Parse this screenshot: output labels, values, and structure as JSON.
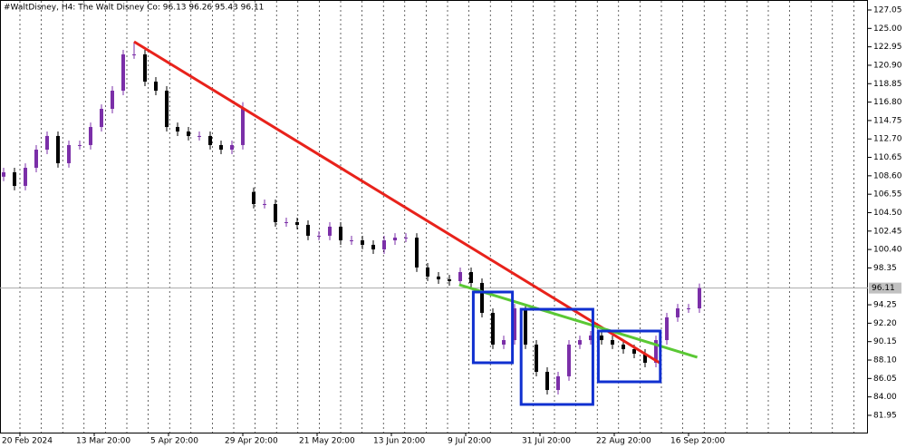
{
  "chart_data": {
    "type": "candlestick",
    "title": "#WaltDisney, H4:  The Walt Disney Co:  96.13 96.26 95.43 96.11",
    "ylim": [
      80.03,
      128.16
    ],
    "yticks": [
      127.05,
      {
        "value": 125,
        "label": "125.00"
      },
      122.95,
      {
        "value": 120.9,
        "label": "120.90"
      },
      118.85,
      {
        "value": 116.8,
        "label": "116.80"
      },
      114.75,
      {
        "value": 112.7,
        "label": "112.70"
      },
      110.65,
      {
        "value": 108.6,
        "label": "108.60"
      },
      106.55,
      {
        "value": 104.5,
        "label": "104.50"
      },
      102.45,
      {
        "value": 100.4,
        "label": "100.40"
      },
      98.35,
      94.25,
      {
        "value": 92.2,
        "label": "92.20"
      },
      90.15,
      {
        "value": 88.1,
        "label": "88.10"
      },
      86.05,
      {
        "value": 84,
        "label": "84.00"
      },
      81.95
    ],
    "x_labels": [
      "20 Feb 2024",
      "13 Mar 20:00",
      "5 Apr 20:00",
      "29 Apr 20:00",
      "21 May 20:00",
      "13 Jun 20:00",
      "9 Jul 20:00",
      "31 Jul 20:00",
      "22 Aug 20:00",
      "16 Sep 20:00"
    ],
    "grid": true,
    "up_color": "#7b2fa8",
    "down_color": "#000000",
    "open": [
      108.5,
      108.99,
      107.48,
      109.49,
      111.51,
      113.03,
      110.0,
      112.02,
      112.02,
      114.03,
      116.05,
      118.07,
      122.11,
      122.11,
      119.08,
      118.07,
      114.03,
      113.53,
      113.03,
      113.03,
      112.02,
      111.51,
      112.02,
      106.8,
      105.46,
      105.46,
      103.44,
      103.44,
      103.14,
      101.93,
      101.93,
      102.94,
      101.42,
      101.42,
      100.92,
      100.41,
      101.42,
      101.72,
      101.72,
      98.4,
      97.39,
      97.08,
      96.88,
      97.89,
      96.68,
      93.35,
      89.82,
      90.32,
      93.85,
      89.82,
      86.79,
      84.77,
      86.29,
      89.82,
      90.32,
      90.83,
      90.32,
      89.82,
      89.31,
      88.81,
      87.8,
      90.32,
      92.85,
      93.85,
      93.85
    ],
    "high": [
      109.49,
      109.49,
      109.99,
      112.01,
      113.53,
      113.53,
      112.52,
      112.52,
      114.53,
      116.55,
      118.57,
      122.61,
      123.5,
      122.61,
      119.58,
      118.57,
      114.53,
      114.03,
      113.53,
      113.53,
      112.52,
      112.52,
      116.8,
      107.3,
      105.96,
      105.96,
      103.94,
      103.94,
      103.64,
      102.43,
      103.44,
      103.44,
      101.92,
      101.92,
      101.42,
      101.92,
      102.22,
      102.22,
      102.22,
      98.9,
      97.89,
      97.58,
      98.39,
      98.39,
      97.18,
      93.85,
      90.82,
      94.35,
      94.35,
      90.32,
      87.29,
      86.79,
      90.32,
      90.82,
      91.33,
      91.33,
      90.82,
      90.32,
      89.81,
      89.31,
      90.82,
      93.35,
      94.35,
      94.35,
      96.61
    ],
    "low": [
      108.0,
      106.98,
      106.98,
      108.99,
      111.01,
      109.5,
      109.5,
      111.52,
      111.52,
      113.53,
      115.55,
      117.57,
      121.61,
      118.58,
      117.57,
      113.53,
      113.03,
      112.53,
      112.53,
      111.52,
      111.01,
      111.01,
      111.52,
      104.96,
      104.96,
      102.94,
      102.94,
      102.64,
      101.43,
      101.43,
      101.43,
      100.92,
      100.92,
      100.42,
      99.91,
      99.91,
      100.92,
      101.22,
      97.9,
      96.89,
      96.58,
      96.38,
      96.38,
      96.18,
      92.85,
      89.32,
      89.32,
      89.82,
      89.32,
      86.29,
      84.27,
      84.27,
      85.79,
      89.32,
      89.82,
      89.82,
      89.32,
      88.81,
      88.31,
      87.3,
      87.3,
      89.82,
      92.35,
      93.35,
      93.35
    ],
    "close": [
      108.99,
      107.48,
      109.49,
      111.51,
      113.03,
      110.0,
      112.02,
      112.02,
      114.03,
      116.05,
      118.07,
      122.11,
      122.11,
      119.08,
      118.07,
      114.03,
      113.53,
      113.03,
      113.03,
      112.02,
      111.51,
      112.02,
      116.05,
      105.46,
      105.46,
      103.44,
      103.44,
      103.14,
      101.93,
      101.93,
      102.94,
      101.42,
      101.42,
      100.92,
      100.41,
      101.42,
      101.72,
      101.72,
      98.4,
      97.39,
      97.08,
      96.88,
      97.89,
      96.68,
      93.35,
      89.82,
      90.32,
      93.85,
      89.82,
      86.79,
      84.77,
      86.29,
      89.82,
      90.32,
      90.83,
      90.32,
      89.82,
      89.31,
      88.81,
      87.8,
      90.32,
      92.85,
      93.85,
      93.85,
      96.11
    ],
    "last_price": 96.11,
    "trendlines": [
      {
        "color": "#e8221b",
        "points": [
          [
            12,
            123.52
          ],
          [
            60.33,
            87.8
          ]
        ]
      },
      {
        "color": "#5ac834",
        "points": [
          [
            41.9,
            96.48
          ],
          [
            63.8,
            88.41
          ]
        ]
      }
    ],
    "boxes": [
      {
        "color": "#1030d0",
        "x": [
          43.2,
          46.8
        ],
        "y": [
          87.8,
          95.67
        ]
      },
      {
        "color": "#1030d0",
        "x": [
          47.6,
          54.2
        ],
        "y": [
          83.16,
          93.75
        ]
      },
      {
        "color": "#1030d0",
        "x": [
          54.7,
          60.4
        ],
        "y": [
          85.68,
          91.33
        ]
      }
    ]
  }
}
